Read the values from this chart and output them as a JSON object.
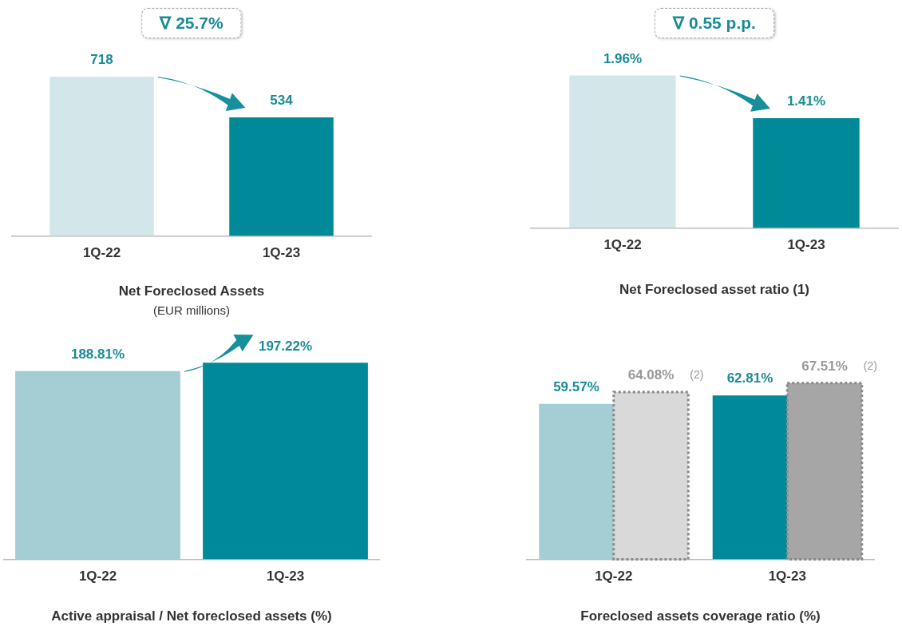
{
  "chart_data": [
    {
      "type": "bar",
      "title": "Net Foreclosed Assets",
      "subtitle": "(EUR millions)",
      "categories": [
        "1Q-22",
        "1Q-23"
      ],
      "values": [
        718,
        534
      ],
      "colors": [
        "#d3e7ea",
        "#008a99"
      ],
      "data_labels": true,
      "annotations": [
        "∇ 25.7%"
      ]
    },
    {
      "type": "bar",
      "title": "Net Foreclosed asset ratio (1)",
      "categories": [
        "1Q-22",
        "1Q-23"
      ],
      "values": [
        1.96,
        1.41
      ],
      "value_labels": [
        "1.96%",
        "1.41%"
      ],
      "colors": [
        "#d3e7ea",
        "#008a99"
      ],
      "annotations": [
        "∇ 0.55 p.p."
      ]
    },
    {
      "type": "bar",
      "title": "Active appraisal / Net foreclosed assets (%)",
      "categories": [
        "1Q-22",
        "1Q-23"
      ],
      "values": [
        188.81,
        197.22
      ],
      "value_labels": [
        "188.81%",
        "197.22%"
      ],
      "colors": [
        "#a4ced4",
        "#008a99"
      ]
    },
    {
      "type": "bar",
      "title": "Foreclosed assets coverage ratio (%)",
      "categories": [
        "1Q-22",
        "1Q-23"
      ],
      "series": [
        {
          "colors": [
            "#a4ced4",
            "#008a99"
          ],
          "values": [
            59.57,
            62.81
          ],
          "value_labels": [
            "59.57%",
            "62.81%"
          ]
        },
        {
          "colors": [
            "#d9d9d9",
            "#a6a6a6"
          ],
          "values": [
            64.08,
            67.51
          ],
          "value_labels": [
            "64.08%",
            "67.51%"
          ],
          "line_style": "dotted"
        }
      ],
      "annotations": [
        "(2)",
        "(2)"
      ]
    }
  ]
}
